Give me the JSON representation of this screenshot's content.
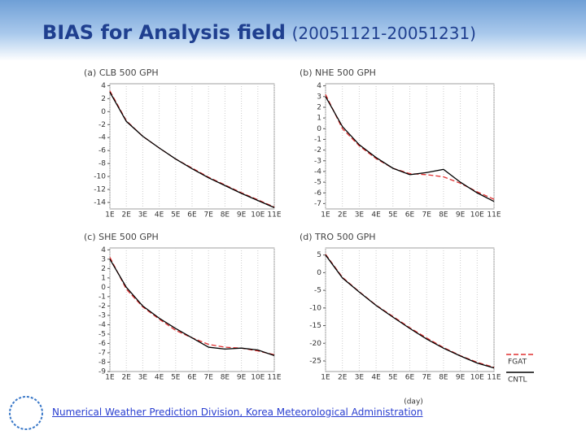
{
  "title": "BIAS for Analysis field",
  "subtitle": "(20051121-20051231)",
  "footer": "Numerical Weather Prediction Division, Korea Meteorological Administration",
  "chart_data": [
    {
      "type": "line",
      "title": "(a) CLB 500 GPH",
      "categories": [
        "1E",
        "2E",
        "3E",
        "4E",
        "5E",
        "6E",
        "7E",
        "8E",
        "9E",
        "10E",
        "11E"
      ],
      "ylim": [
        -15,
        4.3
      ],
      "yticks": [
        4,
        2,
        0,
        -2,
        -4,
        -6,
        -8,
        -10,
        -12,
        -14
      ],
      "series": [
        {
          "name": "FGAT",
          "color": "#e03030",
          "dash": true,
          "values": [
            3.2,
            -1.4,
            -3.8,
            -5.6,
            -7.3,
            -8.7,
            -10.1,
            -11.3,
            -12.5,
            -13.6,
            -14.7
          ]
        },
        {
          "name": "CNTL",
          "color": "#000000",
          "dash": false,
          "values": [
            3,
            -1.5,
            -3.8,
            -5.6,
            -7.3,
            -8.8,
            -10.2,
            -11.4,
            -12.6,
            -13.7,
            -14.8
          ]
        }
      ]
    },
    {
      "type": "line",
      "title": "(b) NHE 500 GPH",
      "categories": [
        "1E",
        "2E",
        "3E",
        "4E",
        "5E",
        "6E",
        "7E",
        "8E",
        "9E",
        "10E",
        "11E"
      ],
      "ylim": [
        -7.5,
        4.2
      ],
      "yticks": [
        4,
        3,
        2,
        1,
        0,
        -1,
        -2,
        -3,
        -4,
        -5,
        -6,
        -7
      ],
      "series": [
        {
          "name": "FGAT",
          "color": "#e03030",
          "dash": true,
          "values": [
            3.2,
            0,
            -1.6,
            -2.8,
            -3.7,
            -4.2,
            -4.3,
            -4.5,
            -5.1,
            -5.9,
            -6.6
          ]
        },
        {
          "name": "CNTL",
          "color": "#000000",
          "dash": false,
          "values": [
            3,
            0.2,
            -1.5,
            -2.7,
            -3.7,
            -4.3,
            -4.1,
            -3.8,
            -5,
            -6,
            -6.8
          ]
        }
      ]
    },
    {
      "type": "line",
      "title": "(c) SHE 500 GPH",
      "categories": [
        "1E",
        "2E",
        "3E",
        "4E",
        "5E",
        "6E",
        "7E",
        "8E",
        "9E",
        "10E",
        "11E"
      ],
      "ylim": [
        -9,
        4.2
      ],
      "yticks": [
        4,
        3,
        2,
        1,
        0,
        -1,
        -2,
        -3,
        -4,
        -5,
        -6,
        -7,
        -8,
        -9
      ],
      "series": [
        {
          "name": "FGAT",
          "color": "#e03030",
          "dash": true,
          "values": [
            3.2,
            -0.2,
            -2.1,
            -3.4,
            -4.6,
            -5.4,
            -6.1,
            -6.4,
            -6.5,
            -6.8,
            -7.2
          ]
        },
        {
          "name": "CNTL",
          "color": "#000000",
          "dash": false,
          "values": [
            3,
            0,
            -2,
            -3.3,
            -4.4,
            -5.4,
            -6.4,
            -6.6,
            -6.5,
            -6.7,
            -7.3
          ]
        }
      ]
    },
    {
      "type": "line",
      "title": "(d) TRO 500 GPH",
      "xlabel": "(day)",
      "categories": [
        "1E",
        "2E",
        "3E",
        "4E",
        "5E",
        "6E",
        "7E",
        "8E",
        "9E",
        "10E",
        "11E"
      ],
      "ylim": [
        -28,
        7
      ],
      "yticks": [
        5,
        0,
        -5,
        -10,
        -15,
        -20,
        -25
      ],
      "series": [
        {
          "name": "FGAT",
          "color": "#e03030",
          "dash": true,
          "values": [
            5.2,
            -1.3,
            -5.4,
            -9.2,
            -12.4,
            -15.6,
            -18.5,
            -21.2,
            -23.5,
            -25.4,
            -26.8
          ]
        },
        {
          "name": "CNTL",
          "color": "#000000",
          "dash": false,
          "values": [
            5,
            -1.5,
            -5.5,
            -9.3,
            -12.6,
            -15.8,
            -18.8,
            -21.4,
            -23.6,
            -25.6,
            -27
          ]
        }
      ]
    }
  ]
}
